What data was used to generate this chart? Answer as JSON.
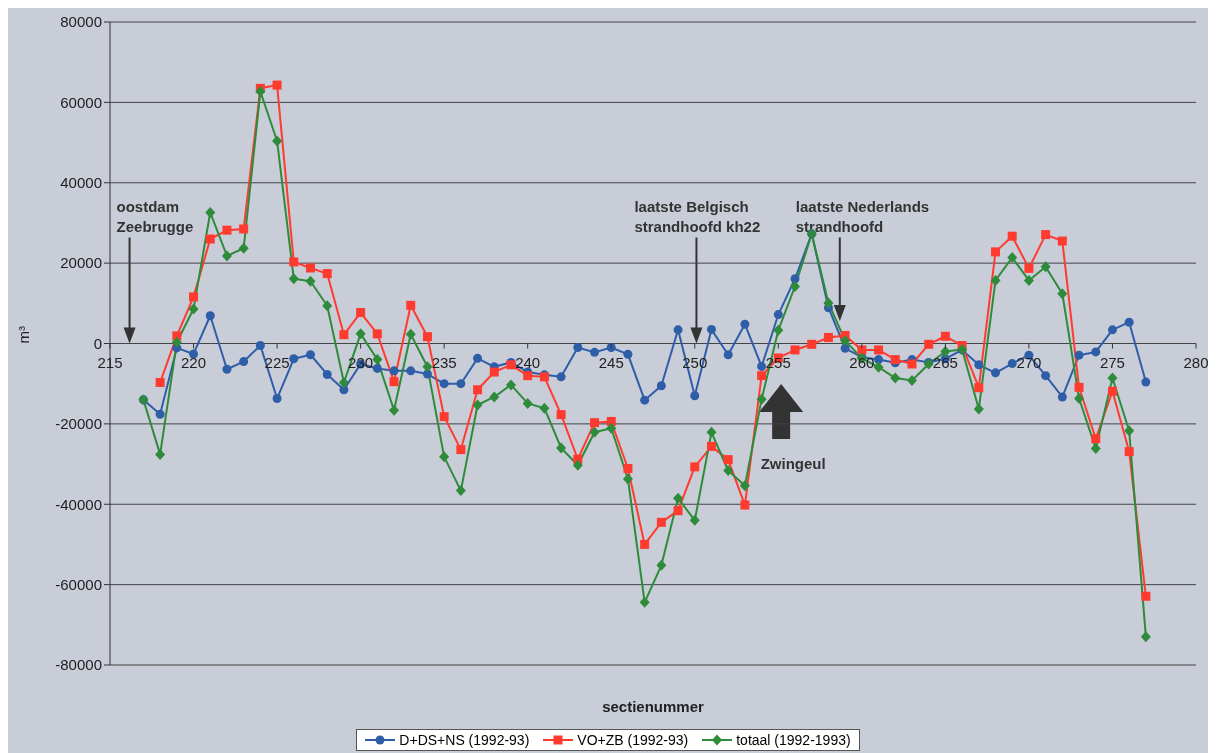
{
  "chart_data": {
    "type": "line",
    "xlabel": "sectienummer",
    "ylabel": "m³",
    "x": [
      217,
      218,
      219,
      220,
      221,
      222,
      223,
      224,
      225,
      226,
      227,
      228,
      229,
      230,
      231,
      232,
      233,
      234,
      235,
      236,
      237,
      238,
      239,
      240,
      241,
      242,
      243,
      244,
      245,
      246,
      247,
      248,
      249,
      250,
      251,
      252,
      253,
      254,
      255,
      256,
      257,
      258,
      259,
      260,
      261,
      262,
      263,
      264,
      265,
      266,
      267,
      268,
      269,
      270,
      271,
      272,
      273,
      274,
      275,
      276,
      277
    ],
    "series": [
      {
        "name": "D+DS+NS (1992-93)",
        "color": "#2f5ea8",
        "marker": "circle",
        "values": [
          -14000,
          -17600,
          -1100,
          -2600,
          6900,
          -6400,
          -4500,
          -500,
          -13700,
          -3800,
          -2800,
          -7700,
          -11500,
          -5100,
          -6200,
          -6800,
          -6800,
          -7600,
          -10000,
          -10000,
          -3700,
          -5800,
          -4700,
          -7100,
          -7800,
          -8300,
          -1000,
          -2200,
          -1000,
          -2700,
          -14100,
          -10500,
          3400,
          -13000,
          3500,
          -2800,
          4800,
          -5700,
          7200,
          16100,
          27300,
          8900,
          -1200,
          -3400,
          -4000,
          -4800,
          -4000,
          -4700,
          -3800,
          -1600,
          -5300,
          -7300,
          -5000,
          -2900,
          -8000,
          -13300,
          -2900,
          -2100,
          3400,
          5300,
          -9600
        ]
      },
      {
        "name": "VO+ZB (1992-93)",
        "color": "#ff3b30",
        "marker": "square",
        "values": [
          null,
          -9700,
          1900,
          11600,
          26000,
          28200,
          28500,
          63500,
          64300,
          20300,
          18800,
          17400,
          2200,
          7700,
          2400,
          -9500,
          9500,
          1700,
          -18200,
          -26400,
          -11500,
          -7100,
          -5300,
          -8000,
          -8300,
          -17700,
          -28800,
          -19700,
          -19400,
          -31100,
          -50000,
          -44500,
          -41600,
          -30700,
          -25600,
          -28900,
          -40200,
          -8000,
          -3600,
          -1600,
          -200,
          1500,
          2000,
          -1600,
          -1600,
          -4000,
          -5100,
          -200,
          1800,
          -500,
          -11000,
          22800,
          26700,
          18700,
          27100,
          25500,
          -10900,
          -23700,
          -11900,
          -26900,
          -62900
        ]
      },
      {
        "name": "totaal (1992-1993)",
        "color": "#2e8b3a",
        "marker": "diamond",
        "values": [
          -14000,
          -27600,
          300,
          8600,
          32600,
          21800,
          23700,
          62700,
          50400,
          16100,
          15500,
          9400,
          -9700,
          2400,
          -4000,
          -16600,
          2300,
          -5800,
          -28200,
          -36600,
          -15300,
          -13300,
          -10300,
          -14900,
          -16100,
          -26000,
          -30300,
          -22100,
          -21100,
          -33700,
          -64400,
          -55200,
          -38500,
          -44000,
          -22100,
          -31600,
          -35400,
          -13900,
          3300,
          14200,
          27300,
          10100,
          700,
          -3700,
          -5900,
          -8600,
          -9200,
          -5100,
          -2000,
          -1500,
          -16300,
          15700,
          21400,
          15700,
          19100,
          12400,
          -13700,
          -26100,
          -8600,
          -21700,
          -73000
        ]
      }
    ],
    "xlim": [
      215,
      280
    ],
    "xticks": [
      215,
      220,
      225,
      230,
      235,
      240,
      245,
      250,
      255,
      260,
      265,
      270,
      275,
      280
    ],
    "ylim": [
      -80000,
      80000
    ],
    "yticks": [
      -80000,
      -60000,
      -40000,
      -20000,
      0,
      20000,
      40000,
      60000,
      80000
    ],
    "grid": "y",
    "legend": "bottom",
    "line_style": "solid",
    "annotations": [
      "oostdam\nZeebrugge",
      "laatste Belgisch\nstrandhoofd kh22",
      "laatste Nederlands\nstrandhoofd",
      "Zwingeul"
    ]
  }
}
